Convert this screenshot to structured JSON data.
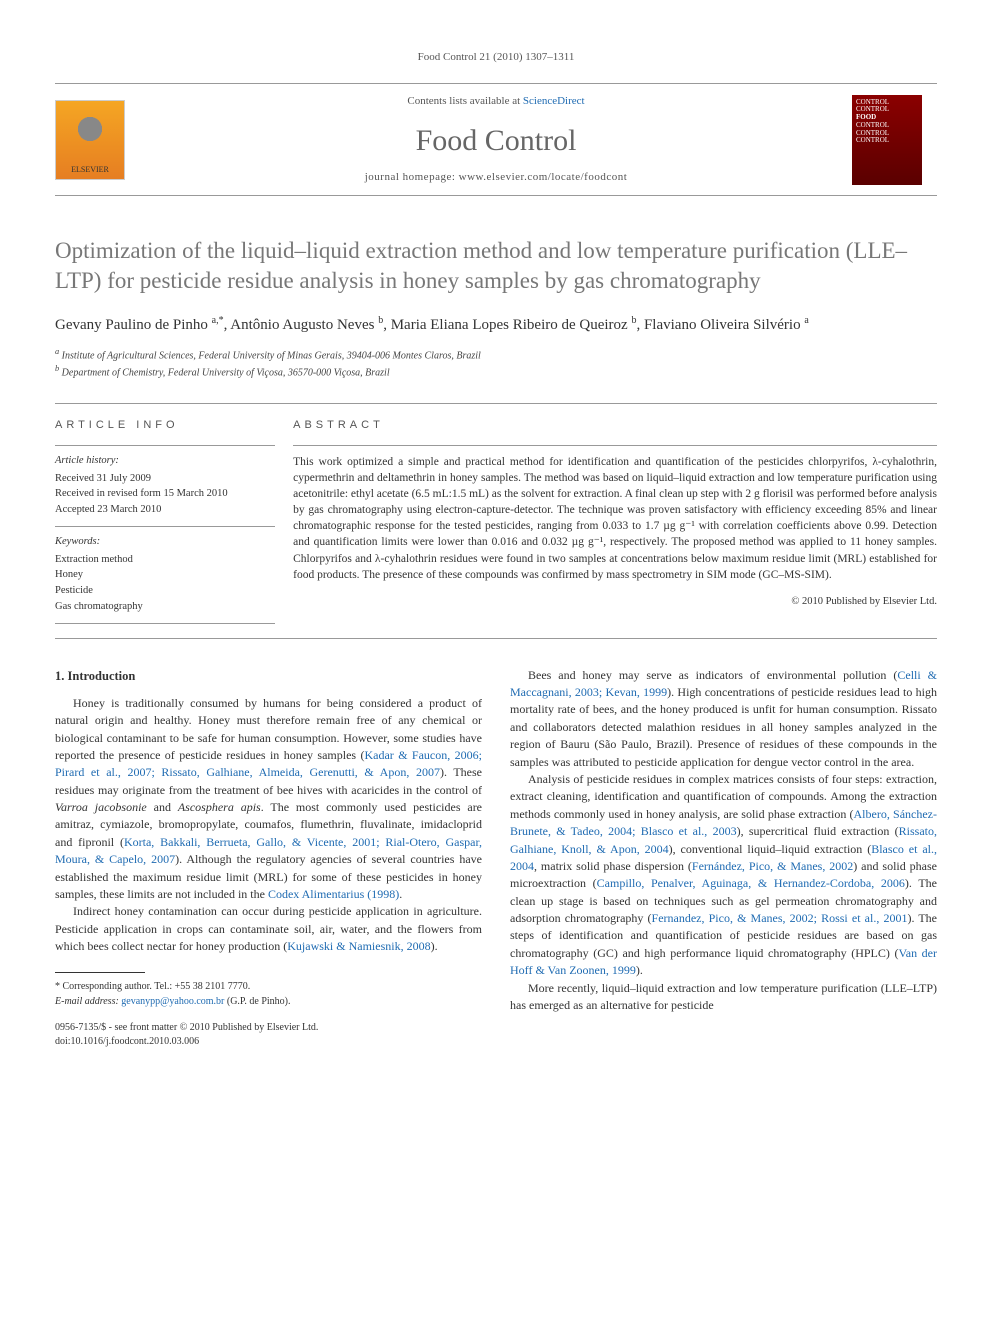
{
  "running_head": "Food Control 21 (2010) 1307–1311",
  "masthead": {
    "contents_prefix": "Contents lists available at ",
    "contents_link": "ScienceDirect",
    "journal": "Food Control",
    "homepage_label": "journal homepage: ",
    "homepage_url": "www.elsevier.com/locate/foodcont",
    "publisher": "ELSEVIER",
    "cover_text_lines": [
      "CONTROL",
      "CONTROL",
      "FOOD",
      "CONTROL",
      "CONTROL",
      "CONTROL"
    ]
  },
  "title": "Optimization of the liquid–liquid extraction method and low temperature purification (LLE–LTP) for pesticide residue analysis in honey samples by gas chromatography",
  "authors_html": "Gevany Paulino de Pinho <sup>a,*</sup>, Antônio Augusto Neves <sup>b</sup>, Maria Eliana Lopes Ribeiro de Queiroz <sup>b</sup>, Flaviano Oliveira Silvério <sup>a</sup>",
  "affiliations": {
    "a": "Institute of Agricultural Sciences, Federal University of Minas Gerais, 39404-006 Montes Claros, Brazil",
    "b": "Department of Chemistry, Federal University of Viçosa, 36570-000 Viçosa, Brazil"
  },
  "article_info": {
    "heading": "ARTICLE INFO",
    "history_title": "Article history:",
    "history": {
      "received": "Received 31 July 2009",
      "revised": "Received in revised form 15 March 2010",
      "accepted": "Accepted 23 March 2010"
    },
    "keywords_title": "Keywords:",
    "keywords": [
      "Extraction method",
      "Honey",
      "Pesticide",
      "Gas chromatography"
    ]
  },
  "abstract": {
    "heading": "ABSTRACT",
    "text": "This work optimized a simple and practical method for identification and quantification of the pesticides chlorpyrifos, λ-cyhalothrin, cypermethrin and deltamethrin in honey samples. The method was based on liquid–liquid extraction and low temperature purification using acetonitrile: ethyl acetate (6.5 mL:1.5 mL) as the solvent for extraction. A final clean up step with 2 g florisil was performed before analysis by gas chromatography using electron-capture-detector. The technique was proven satisfactory with efficiency exceeding 85% and linear chromatographic response for the tested pesticides, ranging from 0.033 to 1.7 µg g⁻¹ with correlation coefficients above 0.99. Detection and quantification limits were lower than 0.016 and 0.032 µg g⁻¹, respectively. The proposed method was applied to 11 honey samples. Chlorpyrifos and λ-cyhalothrin residues were found in two samples at concentrations below maximum residue limit (MRL) established for food products. The presence of these compounds was confirmed by mass spectrometry in SIM mode (GC–MS-SIM).",
    "copyright": "© 2010 Published by Elsevier Ltd."
  },
  "sections": {
    "intro_heading": "1. Introduction",
    "p1_a": "Honey is traditionally consumed by humans for being considered a product of natural origin and healthy. Honey must therefore remain free of any chemical or biological contaminant to be safe for human consumption. However, some studies have reported the presence of pesticide residues in honey samples (",
    "p1_ref1": "Kadar & Faucon, 2006; Pirard et al., 2007; Rissato, Galhiane, Almeida, Gerenutti, & Apon, 2007",
    "p1_b": "). These residues may originate from the treatment of bee hives with acaricides in the control of ",
    "p1_it1": "Varroa jacobsonie",
    "p1_c": " and ",
    "p1_it2": "Ascosphera apis",
    "p1_d": ". The most commonly used pesticides are amitraz, cymiazole, bromopropylate, coumafos, flumethrin, fluvalinate, imidacloprid and fipronil (",
    "p1_ref2": "Korta, Bakkali, Berrueta, Gallo, & Vicente, 2001; Rial-Otero, Gaspar, Moura, & Capelo, 2007",
    "p1_e": "). Although the regulatory agencies of several countries have established the maximum residue limit (MRL) for some of these pesticides in honey samples, these limits are not included in the ",
    "p1_ref3": "Codex Alimentarius (1998)",
    "p1_f": ".",
    "p2_a": "Indirect honey contamination can occur during pesticide application in agriculture. Pesticide application in crops can contaminate soil, air, water, and the flowers from which bees collect nectar for honey production (",
    "p2_ref1": "Kujawski & Namiesnik, 2008",
    "p2_b": ").",
    "p3_a": "Bees and honey may serve as indicators of environmental pollution (",
    "p3_ref1": "Celli & Maccagnani, 2003; Kevan, 1999",
    "p3_b": "). High concentrations of pesticide residues lead to high mortality rate of bees, and the honey produced is unfit for human consumption. Rissato and collaborators detected malathion residues in all honey samples analyzed in the region of Bauru (São Paulo, Brazil). Presence of residues of these compounds in the samples was attributed to pesticide application for dengue vector control in the area.",
    "p4_a": "Analysis of pesticide residues in complex matrices consists of four steps: extraction, extract cleaning, identification and quantification of compounds. Among the extraction methods commonly used in honey analysis, are solid phase extraction (",
    "p4_ref1": "Albero, Sánchez-Brunete, & Tadeo, 2004; Blasco et al., 2003",
    "p4_b": "), supercritical fluid extraction (",
    "p4_ref2": "Rissato, Galhiane, Knoll, & Apon, 2004",
    "p4_c": "), conventional liquid–liquid extraction (",
    "p4_ref3": "Blasco et al., 2004",
    "p4_d": ", matrix solid phase dispersion (",
    "p4_ref4": "Fernández, Pico, & Manes, 2002",
    "p4_e": ") and solid phase microextraction (",
    "p4_ref5": "Campillo, Penalver, Aguinaga, & Hernandez-Cordoba, 2006",
    "p4_f": "). The clean up stage is based on techniques such as gel permeation chromatography and adsorption chromatography (",
    "p4_ref6": "Fernandez, Pico, & Manes, 2002; Rossi et al., 2001",
    "p4_g": "). The steps of identification and quantification of pesticide residues are based on gas chromatography (GC) and high performance liquid chromatography (HPLC) (",
    "p4_ref7": "Van der Hoff & Van Zoonen, 1999",
    "p4_h": ").",
    "p5": "More recently, liquid–liquid extraction and low temperature purification (LLE–LTP) has emerged as an alternative for pesticide"
  },
  "correspondence": {
    "label": "* Corresponding author. Tel.: +55 38 2101 7770.",
    "email_label": "E-mail address: ",
    "email": "gevanypp@yahoo.com.br",
    "email_suffix": " (G.P. de Pinho)."
  },
  "doi": {
    "issn_line": "0956-7135/$ - see front matter © 2010 Published by Elsevier Ltd.",
    "doi_line": "doi:10.1016/j.foodcont.2010.03.006"
  },
  "colors": {
    "link": "#1f6bb2",
    "title_gray": "#777777",
    "rule": "#999999"
  }
}
